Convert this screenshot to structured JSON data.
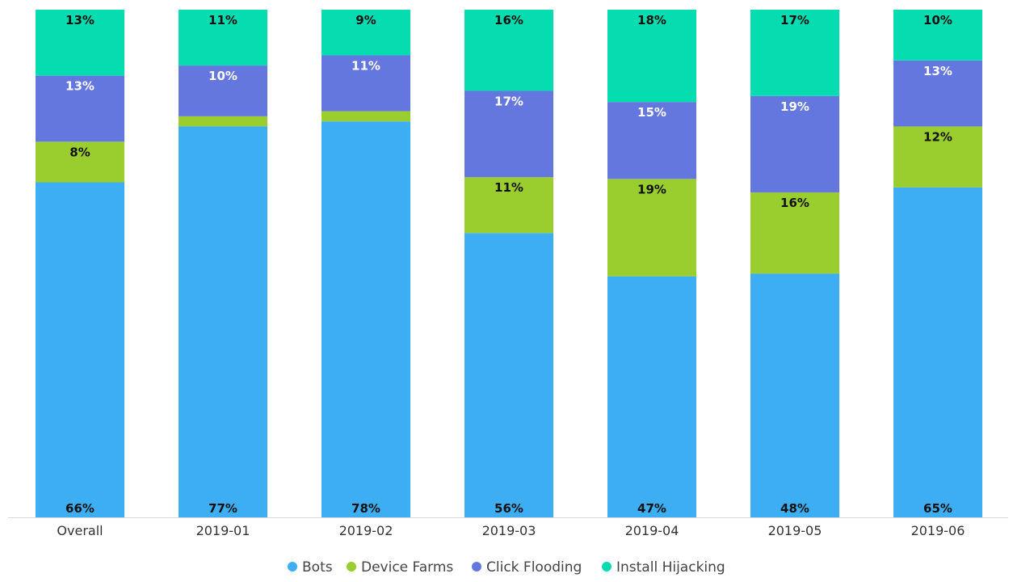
{
  "chart_data": {
    "type": "bar",
    "stacked": true,
    "normalized": true,
    "categories": [
      "Overall",
      "2019-01",
      "2019-02",
      "2019-03",
      "2019-04",
      "2019-05",
      "2019-06"
    ],
    "series": [
      {
        "name": "Bots",
        "color": "#3eaef4",
        "label_color": "#111111",
        "values": [
          66,
          77,
          78,
          56,
          47,
          48,
          65
        ],
        "labels": [
          "66%",
          "77%",
          "78%",
          "56%",
          "47%",
          "48%",
          "65%"
        ]
      },
      {
        "name": "Device Farms",
        "color": "#9acd2e",
        "label_color": "#111111",
        "values": [
          8,
          2,
          2,
          11,
          19,
          16,
          12
        ],
        "labels": [
          "8%",
          "",
          "",
          "11%",
          "19%",
          "16%",
          "12%"
        ]
      },
      {
        "name": "Click Flooding",
        "color": "#6477de",
        "label_color": "#ffffff",
        "values": [
          13,
          10,
          11,
          17,
          15,
          19,
          13
        ],
        "labels": [
          "13%",
          "10%",
          "11%",
          "17%",
          "15%",
          "19%",
          "13%"
        ]
      },
      {
        "name": "Install Hijacking",
        "color": "#05dcb0",
        "label_color": "#111111",
        "values": [
          13,
          11,
          9,
          16,
          18,
          17,
          10
        ],
        "labels": [
          "13%",
          "11%",
          "9%",
          "16%",
          "18%",
          "17%",
          "10%"
        ]
      }
    ],
    "ylim": [
      0,
      100
    ],
    "grid": false,
    "legend": "bottom-center"
  }
}
